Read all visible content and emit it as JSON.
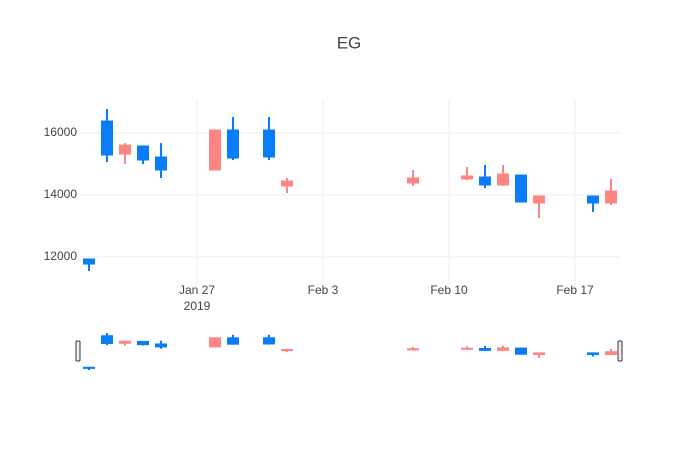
{
  "chart_data": {
    "type": "candlestick",
    "title": "EG",
    "x": [
      "2019-01-21",
      "2019-01-22",
      "2019-01-23",
      "2019-01-24",
      "2019-01-25",
      "2019-01-28",
      "2019-01-29",
      "2019-01-31",
      "2019-02-01",
      "2019-02-08",
      "2019-02-11",
      "2019-02-12",
      "2019-02-13",
      "2019-02-14",
      "2019-02-15",
      "2019-02-18",
      "2019-02-19"
    ],
    "open": [
      11774,
      15290,
      15613,
      15129,
      14806,
      16097,
      15194,
      15226,
      14452,
      14548,
      14613,
      14323,
      14677,
      13774,
      13968,
      13742,
      14129
    ],
    "high": [
      11950,
      16774,
      15677,
      15581,
      15677,
      16097,
      16516,
      16516,
      14548,
      14806,
      14903,
      14968,
      14968,
      14645,
      13968,
      13968,
      14516
    ],
    "low": [
      11548,
      15065,
      15000,
      15000,
      14548,
      14806,
      15129,
      15129,
      14065,
      14290,
      14484,
      14226,
      14290,
      13774,
      13258,
      13452,
      13677
    ],
    "close": [
      11935,
      16387,
      15323,
      15581,
      15226,
      14806,
      16097,
      16097,
      14290,
      14387,
      14516,
      14581,
      14323,
      14645,
      13742,
      13968,
      13742
    ],
    "increasing_color": "#0a7cf6",
    "decreasing_color": "#ff8585",
    "xlim": [
      "2019-01-20T12:00:00Z",
      "2019-02-19T12:00:00Z"
    ],
    "xticks": [
      {
        "value": "2019-01-27",
        "label": "Jan 27",
        "sublabel": "2019"
      },
      {
        "value": "2019-02-03",
        "label": "Feb 3"
      },
      {
        "value": "2019-02-10",
        "label": "Feb 10"
      },
      {
        "value": "2019-02-17",
        "label": "Feb 17"
      }
    ],
    "ylim": [
      11097,
      17065
    ],
    "yticks": [
      12000,
      14000,
      16000
    ],
    "grid": true,
    "rangeslider": true
  }
}
